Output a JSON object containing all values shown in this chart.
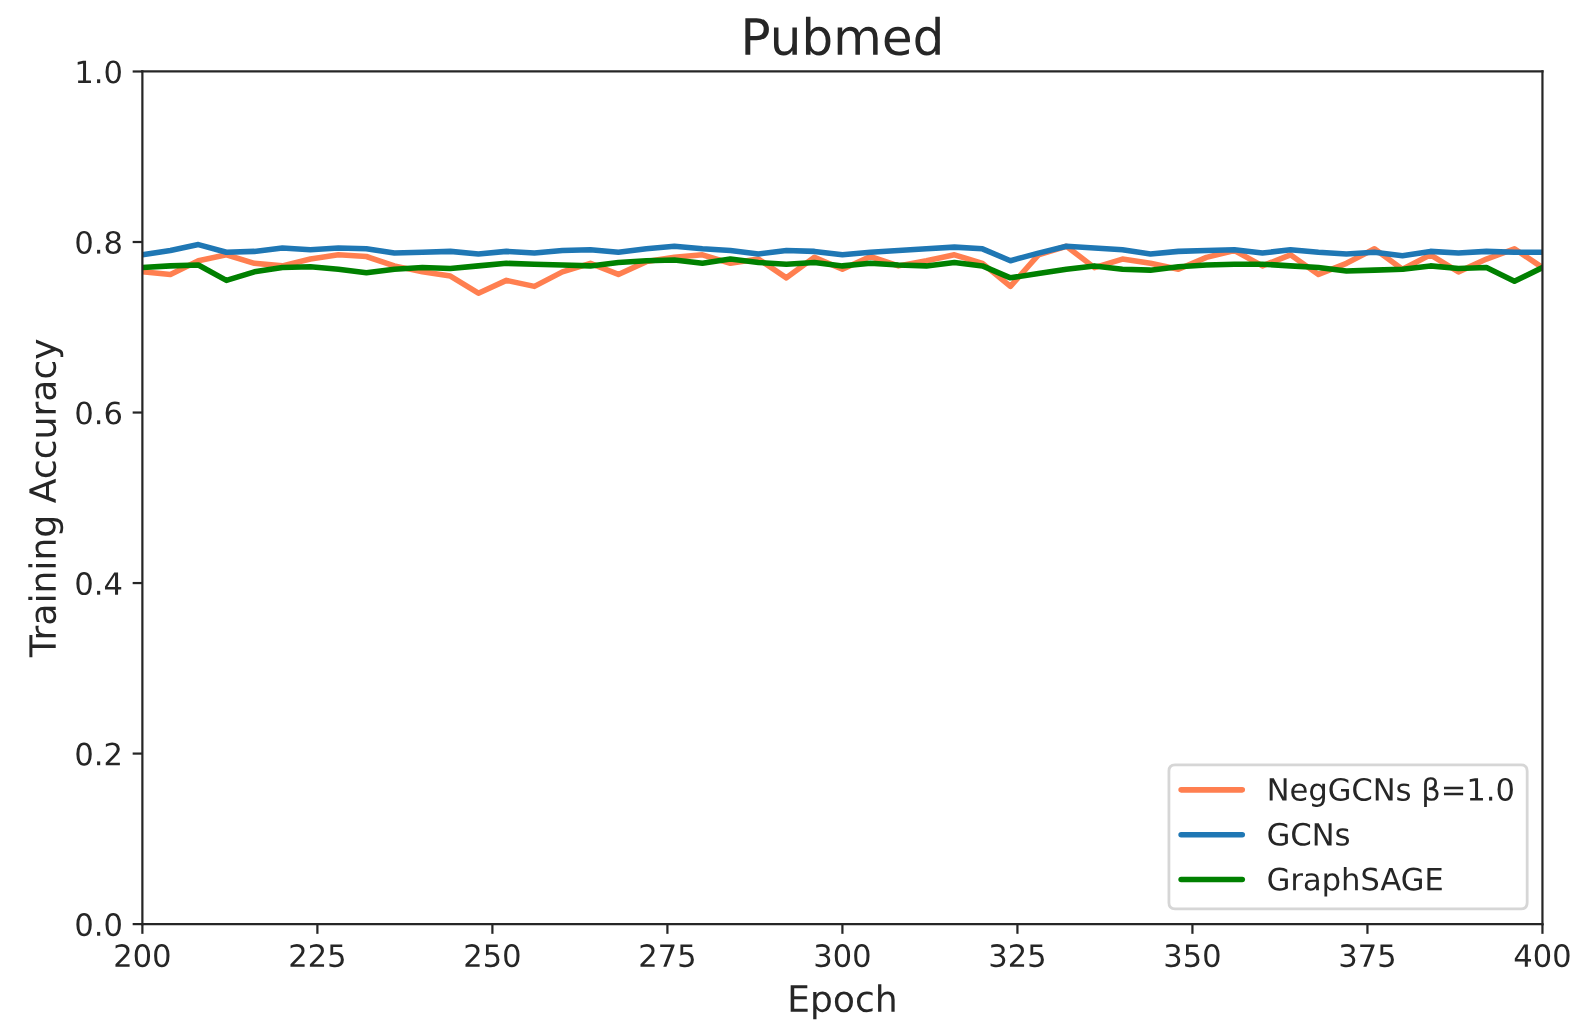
{
  "chart_data": {
    "type": "line",
    "title": "Pubmed",
    "xlabel": "Epoch",
    "ylabel": "Training Accuracy",
    "x": [
      200,
      204,
      208,
      212,
      216,
      220,
      224,
      228,
      232,
      236,
      240,
      244,
      248,
      252,
      256,
      260,
      264,
      268,
      272,
      276,
      280,
      284,
      288,
      292,
      296,
      300,
      304,
      308,
      312,
      316,
      320,
      324,
      328,
      332,
      336,
      340,
      344,
      348,
      352,
      356,
      360,
      364,
      368,
      372,
      376,
      380,
      384,
      388,
      392,
      396,
      400
    ],
    "series": [
      {
        "name": "NegGCNs β=1.0",
        "color": "#ff7f50",
        "values": [
          0.765,
          0.762,
          0.778,
          0.785,
          0.775,
          0.772,
          0.78,
          0.785,
          0.783,
          0.772,
          0.765,
          0.76,
          0.74,
          0.755,
          0.748,
          0.765,
          0.775,
          0.762,
          0.777,
          0.782,
          0.785,
          0.775,
          0.78,
          0.758,
          0.782,
          0.768,
          0.783,
          0.772,
          0.778,
          0.785,
          0.775,
          0.748,
          0.785,
          0.795,
          0.77,
          0.78,
          0.775,
          0.768,
          0.782,
          0.79,
          0.772,
          0.785,
          0.762,
          0.775,
          0.792,
          0.768,
          0.785,
          0.765,
          0.78,
          0.792,
          0.77
        ]
      },
      {
        "name": "GCNs",
        "color": "#1f77b4",
        "values": [
          0.785,
          0.79,
          0.797,
          0.788,
          0.789,
          0.793,
          0.791,
          0.793,
          0.792,
          0.787,
          0.788,
          0.789,
          0.786,
          0.789,
          0.787,
          0.79,
          0.791,
          0.788,
          0.792,
          0.795,
          0.792,
          0.79,
          0.786,
          0.79,
          0.789,
          0.785,
          0.788,
          0.79,
          0.792,
          0.794,
          0.792,
          0.778,
          0.787,
          0.795,
          0.793,
          0.791,
          0.786,
          0.789,
          0.79,
          0.791,
          0.787,
          0.791,
          0.788,
          0.786,
          0.788,
          0.784,
          0.789,
          0.787,
          0.789,
          0.788,
          0.788
        ]
      },
      {
        "name": "GraphSAGE",
        "color": "#008000",
        "values": [
          0.77,
          0.772,
          0.773,
          0.755,
          0.765,
          0.77,
          0.771,
          0.768,
          0.764,
          0.768,
          0.77,
          0.769,
          0.772,
          0.775,
          0.774,
          0.773,
          0.772,
          0.776,
          0.778,
          0.779,
          0.775,
          0.78,
          0.776,
          0.774,
          0.776,
          0.772,
          0.775,
          0.773,
          0.772,
          0.776,
          0.772,
          0.758,
          0.763,
          0.768,
          0.772,
          0.768,
          0.767,
          0.771,
          0.773,
          0.774,
          0.774,
          0.772,
          0.77,
          0.766,
          0.767,
          0.768,
          0.772,
          0.769,
          0.77,
          0.754,
          0.77
        ]
      }
    ],
    "xlim": [
      200,
      400
    ],
    "xticks": [
      200,
      225,
      250,
      275,
      300,
      325,
      350,
      375,
      400
    ],
    "ylim": [
      0.0,
      1.0
    ],
    "yticks": [
      {
        "value": 0.0,
        "label": "0.0"
      },
      {
        "value": 0.2,
        "label": "0.2"
      },
      {
        "value": 0.4,
        "label": "0.4"
      },
      {
        "value": 0.6,
        "label": "0.6"
      },
      {
        "value": 0.8,
        "label": "0.8"
      },
      {
        "value": 1.0,
        "label": "1.0"
      }
    ],
    "legend": "bottom right",
    "grid": false
  }
}
